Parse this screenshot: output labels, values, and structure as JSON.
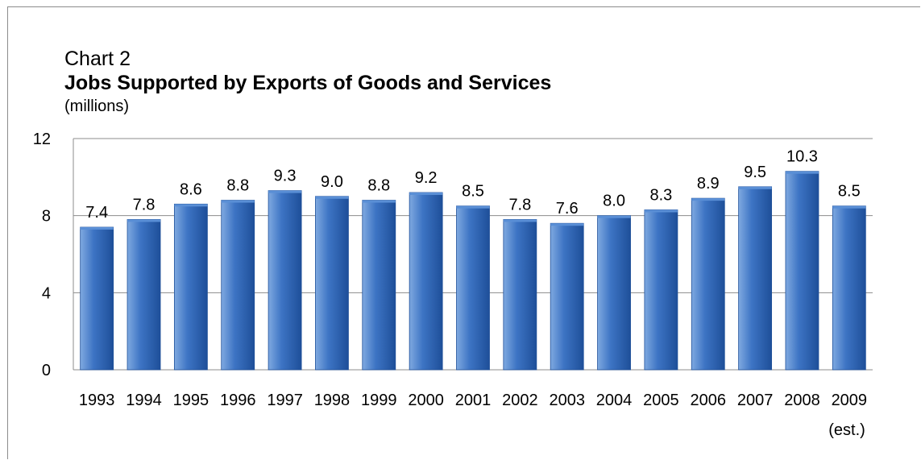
{
  "header": {
    "label": "Chart 2",
    "title": "Jobs Supported by Exports of Goods and Services",
    "subtitle": "(millions)"
  },
  "colors": {
    "bar_light": "#7fa9e0",
    "bar_mid": "#3d74c4",
    "bar_dark": "#1e4f99",
    "bar_top": "#5a8fd6",
    "gridline": "#8c8c8c"
  },
  "chart_data": {
    "type": "bar",
    "title": "Jobs Supported by Exports of Goods and Services",
    "subtitle": "(millions)",
    "categories": [
      "1993",
      "1994",
      "1995",
      "1996",
      "1997",
      "1998",
      "1999",
      "2000",
      "2001",
      "2002",
      "2003",
      "2004",
      "2005",
      "2006",
      "2007",
      "2008",
      "2009"
    ],
    "category_sublabels": [
      "",
      "",
      "",
      "",
      "",
      "",
      "",
      "",
      "",
      "",
      "",
      "",
      "",
      "",
      "",
      "",
      "(est.)"
    ],
    "values": [
      7.4,
      7.8,
      8.6,
      8.8,
      9.3,
      9.0,
      8.8,
      9.2,
      8.5,
      7.8,
      7.6,
      8.0,
      8.3,
      8.9,
      9.5,
      10.3,
      8.5
    ],
    "value_labels": [
      "7.4",
      "7.8",
      "8.6",
      "8.8",
      "9.3",
      "9.0",
      "8.8",
      "9.2",
      "8.5",
      "7.8",
      "7.6",
      "8.0",
      "8.3",
      "8.9",
      "9.5",
      "10.3",
      "8.5"
    ],
    "yticks": [
      0,
      4,
      8,
      12
    ],
    "ylim": [
      0,
      12
    ],
    "grid": true,
    "legend": "none",
    "xlabel": "",
    "ylabel": ""
  }
}
